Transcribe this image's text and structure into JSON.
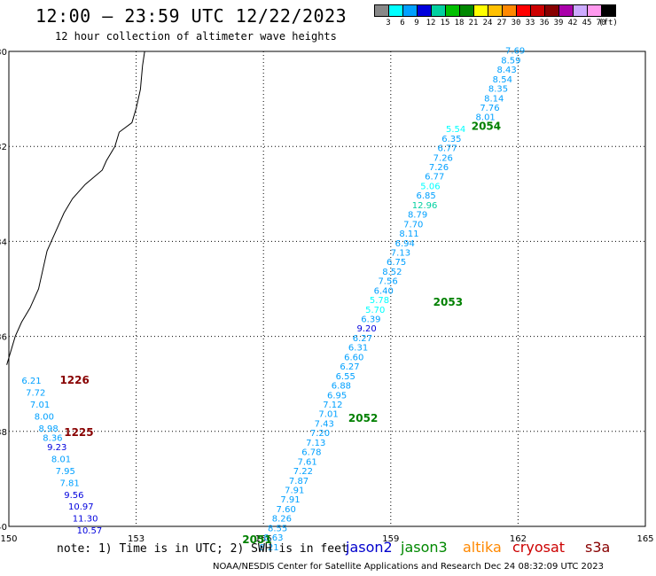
{
  "header": {
    "title": "12:00 — 23:59 UTC 12/22/2023",
    "subtitle": "12 hour collection of altimeter wave heights"
  },
  "scale": {
    "colors": [
      "#888888",
      "#00ffff",
      "#00a0ff",
      "#0000dd",
      "#00d0a0",
      "#00c000",
      "#008800",
      "#ffff00",
      "#ffc000",
      "#ff8800",
      "#ff0000",
      "#cc0000",
      "#880000",
      "#aa00aa",
      "#ccaaff",
      "#ff99ee",
      "#000000"
    ],
    "labels": [
      "3",
      "6",
      "9",
      "12",
      "15",
      "18",
      "21",
      "24",
      "27",
      "30",
      "33",
      "36",
      "39",
      "42",
      "45",
      "70",
      "(ft)"
    ]
  },
  "axes": {
    "lat_labels": [
      "-30",
      "-32",
      "-34",
      "-36",
      "-38",
      "-40"
    ],
    "lon_labels": [
      "150",
      "153",
      "156",
      "159",
      "162",
      "165"
    ]
  },
  "tracks": [
    {
      "id": "2054",
      "color": "#008000",
      "lon": 160.9,
      "lat": -31.65,
      "points": [
        [
          161.7,
          -30.05,
          "7.69"
        ],
        [
          161.6,
          -30.25,
          "8.59"
        ],
        [
          161.5,
          -30.45,
          "8.43"
        ],
        [
          161.4,
          -30.65,
          "8.54"
        ],
        [
          161.3,
          -30.85,
          "8.35"
        ],
        [
          161.2,
          -31.05,
          "8.14"
        ],
        [
          161.1,
          -31.25,
          "7.76"
        ],
        [
          161.0,
          -31.45,
          "8.01"
        ]
      ]
    },
    {
      "id": "2053",
      "color": "#008000",
      "lon": 160.0,
      "lat": -35.35,
      "points": [
        [
          160.3,
          -31.7,
          "5.54"
        ],
        [
          160.2,
          -31.9,
          "6.35"
        ],
        [
          160.1,
          -32.1,
          "6.77"
        ],
        [
          160.0,
          -32.3,
          "7.26"
        ],
        [
          159.9,
          -32.5,
          "7.26"
        ],
        [
          159.8,
          -32.7,
          "6.77"
        ],
        [
          159.7,
          -32.9,
          "5.06"
        ],
        [
          159.6,
          -33.1,
          "6.85"
        ],
        [
          159.5,
          -33.3,
          "12.96"
        ],
        [
          159.4,
          -33.5,
          "8.79"
        ],
        [
          159.3,
          -33.7,
          "7.70"
        ],
        [
          159.2,
          -33.9,
          "8.11"
        ],
        [
          159.1,
          -34.1,
          "6.94"
        ],
        [
          159.0,
          -34.3,
          "7.13"
        ],
        [
          158.9,
          -34.5,
          "6.75"
        ],
        [
          158.8,
          -34.7,
          "8.52"
        ],
        [
          158.7,
          -34.9,
          "7.56"
        ],
        [
          158.6,
          -35.1,
          "6.40"
        ],
        [
          158.5,
          -35.3,
          "5.78"
        ],
        [
          158.4,
          -35.5,
          "5.70"
        ],
        [
          158.3,
          -35.7,
          "6.39"
        ],
        [
          158.2,
          -35.9,
          "9.20"
        ],
        [
          158.1,
          -36.1,
          "6.27"
        ]
      ]
    },
    {
      "id": "2052",
      "color": "#008000",
      "lon": 158.0,
      "lat": -37.8,
      "points": [
        [
          158.0,
          -36.3,
          "6.31"
        ],
        [
          157.9,
          -36.5,
          "6.60"
        ],
        [
          157.8,
          -36.7,
          "6.27"
        ],
        [
          157.7,
          -36.9,
          "6.55"
        ],
        [
          157.6,
          -37.1,
          "6.88"
        ],
        [
          157.5,
          -37.3,
          "6.95"
        ],
        [
          157.4,
          -37.5,
          "7.12"
        ],
        [
          157.3,
          -37.7,
          "7.01"
        ],
        [
          157.2,
          -37.9,
          "7.43"
        ],
        [
          157.1,
          -38.1,
          "7.20"
        ],
        [
          157.0,
          -38.3,
          "7.13"
        ],
        [
          156.9,
          -38.5,
          "6.78"
        ],
        [
          156.8,
          -38.7,
          "7.61"
        ],
        [
          156.7,
          -38.9,
          "7.22"
        ],
        [
          156.6,
          -39.1,
          "7.87"
        ],
        [
          156.5,
          -39.3,
          "7.91"
        ],
        [
          156.4,
          -39.5,
          "7.91"
        ],
        [
          156.3,
          -39.7,
          "7.60"
        ],
        [
          156.2,
          -39.9,
          "8.26"
        ],
        [
          156.1,
          -40.1,
          "8.55"
        ],
        [
          156.0,
          -40.3,
          "8.63"
        ],
        [
          155.9,
          -40.5,
          "8.21"
        ]
      ]
    },
    {
      "id": "2051",
      "color": "#008000",
      "lon": 155.5,
      "lat": -40.35,
      "points": []
    },
    {
      "id": "1226",
      "color": "#880000",
      "lon": 151.2,
      "lat": -37.0,
      "points": [
        [
          150.3,
          -37.0,
          "6.21"
        ],
        [
          150.4,
          -37.25,
          "7.72"
        ],
        [
          150.5,
          -37.5,
          "7.01"
        ],
        [
          150.6,
          -37.75,
          "8.00"
        ],
        [
          150.7,
          -38.0,
          "8.98"
        ],
        [
          150.8,
          -38.2,
          "8.36"
        ]
      ]
    },
    {
      "id": "1225",
      "color": "#880000",
      "lon": 151.3,
      "lat": -38.1,
      "points": [
        [
          150.9,
          -38.4,
          "9.23"
        ],
        [
          151.0,
          -38.65,
          "8.01"
        ],
        [
          151.1,
          -38.9,
          "7.95"
        ],
        [
          151.2,
          -39.15,
          "7.81"
        ],
        [
          151.3,
          -39.4,
          "9.56"
        ],
        [
          151.4,
          -39.65,
          "10.97"
        ],
        [
          151.5,
          -39.9,
          "11.30"
        ],
        [
          151.6,
          -40.15,
          "10.57"
        ]
      ]
    }
  ],
  "note": "note: 1) Time is in UTC; 2) SWH is in feet",
  "satellites": [
    {
      "name": "jason2",
      "color": "#0000cc"
    },
    {
      "name": "jason3",
      "color": "#008800"
    },
    {
      "name": "altika",
      "color": "#ff8800"
    },
    {
      "name": "cryosat",
      "color": "#cc0000"
    },
    {
      "name": "s3a",
      "color": "#880000"
    }
  ],
  "footer": "NOAA/NESDIS Center for Satellite Applications and Research    Dec 24 08:32:09 UTC 2023"
}
